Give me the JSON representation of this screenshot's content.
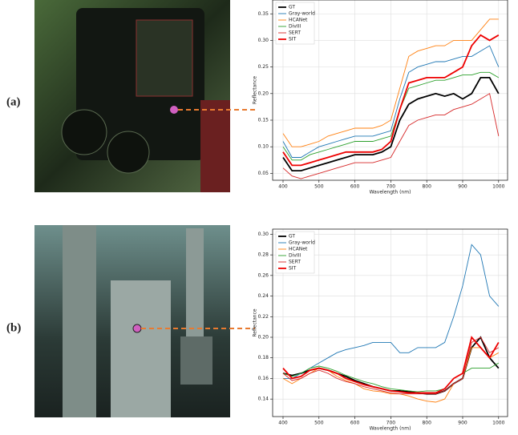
{
  "chart_data": [
    {
      "type": "line",
      "label": "(a)",
      "x_label": "Wavelength (nm)",
      "y_label": "Reflectance",
      "x": [
        400,
        425,
        450,
        475,
        500,
        525,
        550,
        575,
        600,
        625,
        650,
        675,
        700,
        725,
        750,
        775,
        800,
        825,
        850,
        875,
        900,
        925,
        950,
        975,
        1000
      ],
      "xlim": [
        371,
        1025
      ],
      "ylim": [
        0.037,
        0.376
      ],
      "xticks": [
        400,
        500,
        600,
        700,
        800,
        900,
        1000
      ],
      "yticks": [
        0.05,
        {
          "value": 0.1,
          "label": "0.10"
        },
        0.15,
        {
          "value": 0.2,
          "label": "0.20"
        },
        0.25,
        {
          "value": 0.3,
          "label": "0.30"
        },
        0.35
      ],
      "grid": true,
      "legend": "upper left",
      "series": [
        {
          "name": "GT",
          "color": "#000000",
          "values": [
            0.08,
            0.055,
            0.055,
            0.06,
            0.065,
            0.07,
            0.075,
            0.08,
            0.085,
            0.085,
            0.085,
            0.09,
            0.1,
            0.15,
            0.18,
            0.19,
            0.195,
            0.2,
            0.195,
            0.2,
            0.19,
            0.2,
            0.23,
            0.23,
            0.2
          ]
        },
        {
          "name": "Gray-world",
          "color": "#1f77b4",
          "values": [
            0.11,
            0.08,
            0.08,
            0.09,
            0.1,
            0.105,
            0.11,
            0.115,
            0.12,
            0.12,
            0.12,
            0.125,
            0.13,
            0.19,
            0.24,
            0.25,
            0.255,
            0.26,
            0.26,
            0.265,
            0.27,
            0.27,
            0.28,
            0.29,
            0.25
          ]
        },
        {
          "name": "HCANet",
          "color": "#ff7f0e",
          "values": [
            0.125,
            0.1,
            0.1,
            0.105,
            0.11,
            0.12,
            0.125,
            0.13,
            0.135,
            0.135,
            0.135,
            0.14,
            0.15,
            0.21,
            0.27,
            0.28,
            0.285,
            0.29,
            0.29,
            0.3,
            0.3,
            0.3,
            0.32,
            0.34,
            0.34
          ]
        },
        {
          "name": "DivIII",
          "color": "#2ca02c",
          "values": [
            0.1,
            0.075,
            0.075,
            0.085,
            0.09,
            0.095,
            0.1,
            0.105,
            0.11,
            0.11,
            0.11,
            0.115,
            0.12,
            0.17,
            0.21,
            0.215,
            0.22,
            0.225,
            0.225,
            0.23,
            0.235,
            0.235,
            0.24,
            0.24,
            0.23
          ]
        },
        {
          "name": "SERT",
          "color": "#d62728",
          "values": [
            0.06,
            0.045,
            0.04,
            0.045,
            0.05,
            0.055,
            0.06,
            0.065,
            0.07,
            0.07,
            0.07,
            0.075,
            0.08,
            0.11,
            0.14,
            0.15,
            0.155,
            0.16,
            0.16,
            0.17,
            0.175,
            0.18,
            0.19,
            0.2,
            0.12
          ]
        },
        {
          "name": "SIT",
          "color": "#ee0000",
          "values": [
            0.09,
            0.065,
            0.065,
            0.07,
            0.075,
            0.08,
            0.085,
            0.09,
            0.09,
            0.09,
            0.09,
            0.095,
            0.11,
            0.17,
            0.22,
            0.225,
            0.23,
            0.23,
            0.23,
            0.24,
            0.25,
            0.29,
            0.31,
            0.3,
            0.31
          ]
        }
      ]
    },
    {
      "type": "line",
      "label": "(b)",
      "x_label": "Wavelength (nm)",
      "y_label": "Reflectance",
      "x": [
        400,
        425,
        450,
        475,
        500,
        525,
        550,
        575,
        600,
        625,
        650,
        675,
        700,
        725,
        750,
        775,
        800,
        825,
        850,
        875,
        900,
        925,
        950,
        975,
        1000
      ],
      "xlim": [
        371,
        1025
      ],
      "ylim": [
        0.123,
        0.305
      ],
      "xticks": [
        400,
        500,
        600,
        700,
        800,
        900,
        1000
      ],
      "yticks": [
        0.14,
        0.16,
        0.18,
        {
          "value": 0.2,
          "label": "0.20"
        },
        0.22,
        0.24,
        0.26,
        0.28,
        {
          "value": 0.3,
          "label": "0.30"
        }
      ],
      "grid": true,
      "legend": "upper left",
      "series": [
        {
          "name": "GT",
          "color": "#000000",
          "values": [
            0.165,
            0.163,
            0.165,
            0.168,
            0.17,
            0.168,
            0.165,
            0.162,
            0.158,
            0.155,
            0.152,
            0.15,
            0.148,
            0.148,
            0.147,
            0.146,
            0.145,
            0.145,
            0.148,
            0.155,
            0.16,
            0.19,
            0.2,
            0.18,
            0.17
          ]
        },
        {
          "name": "Gray-world",
          "color": "#1f77b4",
          "values": [
            0.16,
            0.16,
            0.165,
            0.17,
            0.175,
            0.18,
            0.185,
            0.188,
            0.19,
            0.192,
            0.195,
            0.195,
            0.195,
            0.185,
            0.185,
            0.19,
            0.19,
            0.19,
            0.195,
            0.22,
            0.25,
            0.29,
            0.28,
            0.24,
            0.23
          ]
        },
        {
          "name": "HCANet",
          "color": "#ff7f0e",
          "values": [
            0.16,
            0.155,
            0.16,
            0.165,
            0.17,
            0.168,
            0.162,
            0.158,
            0.155,
            0.15,
            0.148,
            0.147,
            0.145,
            0.145,
            0.143,
            0.14,
            0.138,
            0.137,
            0.14,
            0.155,
            0.16,
            0.19,
            0.19,
            0.18,
            0.185
          ]
        },
        {
          "name": "DivIII",
          "color": "#2ca02c",
          "values": [
            0.165,
            0.162,
            0.165,
            0.17,
            0.172,
            0.17,
            0.167,
            0.163,
            0.16,
            0.157,
            0.155,
            0.152,
            0.15,
            0.149,
            0.148,
            0.147,
            0.148,
            0.148,
            0.15,
            0.16,
            0.165,
            0.17,
            0.17,
            0.17,
            0.175
          ]
        },
        {
          "name": "SERT",
          "color": "#d62728",
          "values": [
            0.165,
            0.158,
            0.16,
            0.165,
            0.168,
            0.165,
            0.16,
            0.157,
            0.155,
            0.152,
            0.15,
            0.148,
            0.146,
            0.145,
            0.145,
            0.145,
            0.145,
            0.145,
            0.148,
            0.155,
            0.16,
            0.195,
            0.2,
            0.185,
            0.19
          ]
        },
        {
          "name": "SIT",
          "color": "#ee0000",
          "values": [
            0.17,
            0.16,
            0.162,
            0.168,
            0.17,
            0.168,
            0.165,
            0.16,
            0.157,
            0.154,
            0.152,
            0.15,
            0.148,
            0.147,
            0.146,
            0.146,
            0.146,
            0.146,
            0.15,
            0.16,
            0.165,
            0.2,
            0.19,
            0.18,
            0.195
          ]
        }
      ]
    }
  ]
}
